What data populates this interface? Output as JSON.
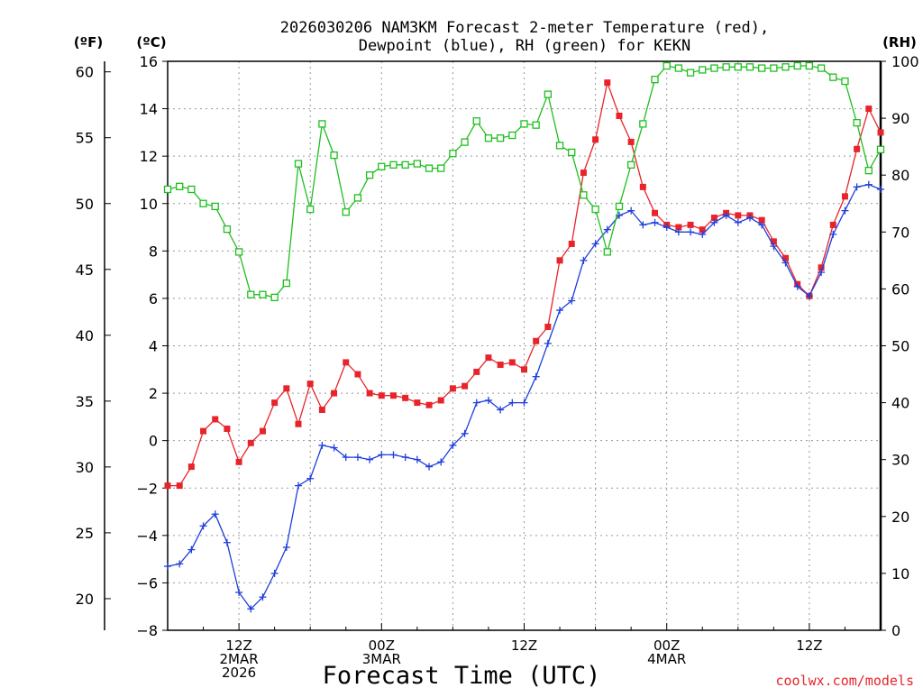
{
  "chart_data": {
    "type": "line",
    "title_line1": "2026030206 NAM3KM Forecast 2-meter Temperature (red),",
    "title_line2": "Dewpoint (blue), RH (green) for KEKN",
    "xlabel": "Forecast Time (UTC)",
    "unit_f": "(ºF)",
    "unit_c": "(ºC)",
    "unit_rh": "(RH)",
    "watermark": "coolwx.com/models",
    "x_unit": "forecast hour",
    "xlim": [
      6,
      66
    ],
    "ylim_c": [
      -8,
      16
    ],
    "ylim_rh": [
      0,
      100
    ],
    "y_ticks_c": [
      -8,
      -6,
      -4,
      -2,
      0,
      2,
      4,
      6,
      8,
      10,
      12,
      14,
      16
    ],
    "y_ticks_f": [
      20,
      25,
      30,
      35,
      40,
      45,
      50,
      55,
      60
    ],
    "y_ticks_rh": [
      0,
      10,
      20,
      30,
      40,
      50,
      60,
      70,
      80,
      90,
      100
    ],
    "x_ticks": [
      {
        "hour": 12,
        "lines": [
          "12Z",
          "2MAR",
          "2026"
        ]
      },
      {
        "hour": 24,
        "lines": [
          "00Z",
          "3MAR"
        ]
      },
      {
        "hour": 36,
        "lines": [
          "12Z"
        ]
      },
      {
        "hour": 48,
        "lines": [
          "00Z",
          "4MAR"
        ]
      },
      {
        "hour": 60,
        "lines": [
          "12Z"
        ]
      }
    ],
    "grid": true,
    "x": [
      6,
      7,
      8,
      9,
      10,
      11,
      12,
      13,
      14,
      15,
      16,
      17,
      18,
      19,
      20,
      21,
      22,
      23,
      24,
      25,
      26,
      27,
      28,
      29,
      30,
      31,
      32,
      33,
      34,
      35,
      36,
      37,
      38,
      39,
      40,
      41,
      42,
      43,
      44,
      45,
      46,
      47,
      48,
      49,
      50,
      51,
      52,
      53,
      54,
      55,
      56,
      57,
      58,
      59,
      60,
      61,
      62,
      63,
      64,
      65,
      66
    ],
    "series": [
      {
        "name": "Temperature",
        "color": "#e8242b",
        "marker": "filled-square",
        "axis": "celsius",
        "values": [
          -1.9,
          -1.9,
          -1.1,
          0.4,
          0.9,
          0.5,
          -0.9,
          -0.1,
          0.4,
          1.6,
          2.2,
          0.7,
          2.4,
          1.3,
          2.0,
          3.3,
          2.8,
          2.0,
          1.9,
          1.9,
          1.8,
          1.6,
          1.5,
          1.7,
          2.2,
          2.3,
          2.9,
          3.5,
          3.2,
          3.3,
          3.0,
          4.2,
          4.8,
          7.6,
          8.3,
          11.3,
          12.7,
          15.1,
          13.7,
          12.6,
          10.7,
          9.6,
          9.1,
          9.0,
          9.1,
          8.9,
          9.4,
          9.6,
          9.5,
          9.5,
          9.3,
          8.4,
          7.7,
          6.6,
          6.1,
          7.3,
          9.1,
          10.3,
          12.3,
          14.0,
          13.0
        ]
      },
      {
        "name": "Dewpoint",
        "color": "#1f3fdc",
        "marker": "plus",
        "axis": "celsius",
        "values": [
          -5.3,
          -5.2,
          -4.6,
          -3.6,
          -3.1,
          -4.3,
          -6.4,
          -7.1,
          -6.6,
          -5.6,
          -4.5,
          -1.9,
          -1.6,
          -0.2,
          -0.3,
          -0.7,
          -0.7,
          -0.8,
          -0.6,
          -0.6,
          -0.7,
          -0.8,
          -1.1,
          -0.9,
          -0.2,
          0.3,
          1.6,
          1.7,
          1.3,
          1.6,
          1.6,
          2.7,
          4.1,
          5.5,
          5.9,
          7.6,
          8.3,
          8.9,
          9.5,
          9.7,
          9.1,
          9.2,
          9.0,
          8.8,
          8.8,
          8.7,
          9.2,
          9.5,
          9.2,
          9.4,
          9.1,
          8.2,
          7.5,
          6.5,
          6.1,
          7.1,
          8.7,
          9.7,
          10.7,
          10.8,
          10.6
        ]
      },
      {
        "name": "RH",
        "color": "#1fbf1f",
        "marker": "open-square",
        "axis": "rh",
        "values": [
          77.5,
          78.0,
          77.5,
          75.0,
          74.5,
          70.5,
          66.5,
          59.0,
          59.0,
          58.5,
          61.0,
          82.0,
          74.0,
          89.0,
          83.5,
          73.5,
          76.0,
          80.0,
          81.5,
          81.8,
          81.8,
          82.0,
          81.2,
          81.2,
          83.8,
          85.8,
          89.5,
          86.5,
          86.5,
          87.0,
          89.0,
          88.8,
          94.2,
          85.2,
          84.0,
          76.5,
          74.0,
          66.5,
          74.5,
          81.8,
          89.0,
          96.8,
          99.2,
          98.8,
          98.0,
          98.5,
          98.8,
          99.0,
          99.0,
          99.0,
          98.8,
          98.8,
          99.0,
          99.2,
          99.2,
          98.8,
          97.2,
          96.5,
          89.2,
          80.8,
          84.5
        ]
      }
    ]
  }
}
